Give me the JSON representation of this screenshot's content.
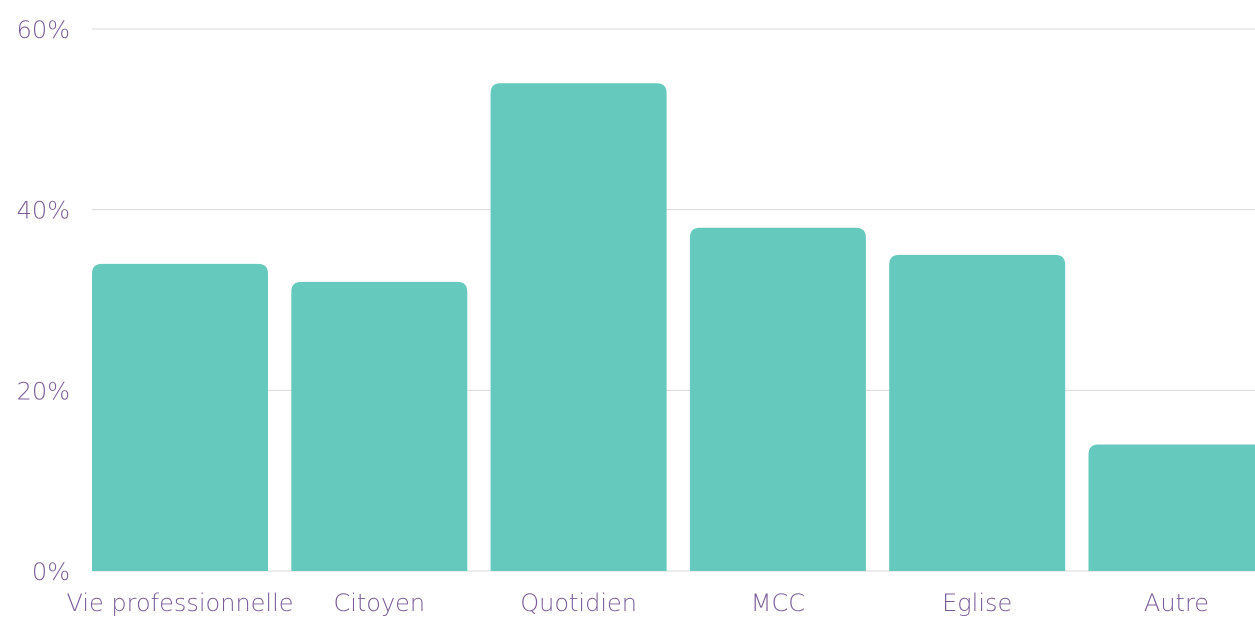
{
  "chart_data": {
    "type": "bar",
    "categories": [
      "Vie professionnelle",
      "Citoyen",
      "Quotidien",
      "MCC",
      "Eglise",
      "Autre"
    ],
    "values": [
      34,
      32,
      54,
      38,
      35,
      14
    ],
    "color": "#66c9be",
    "ylim": [
      0,
      60
    ],
    "yticks": [
      {
        "value": 0,
        "label": "0%"
      },
      {
        "value": 20,
        "label": "20%"
      },
      {
        "value": 40,
        "label": "40%"
      },
      {
        "value": 60,
        "label": "60%"
      }
    ],
    "grid": true
  }
}
